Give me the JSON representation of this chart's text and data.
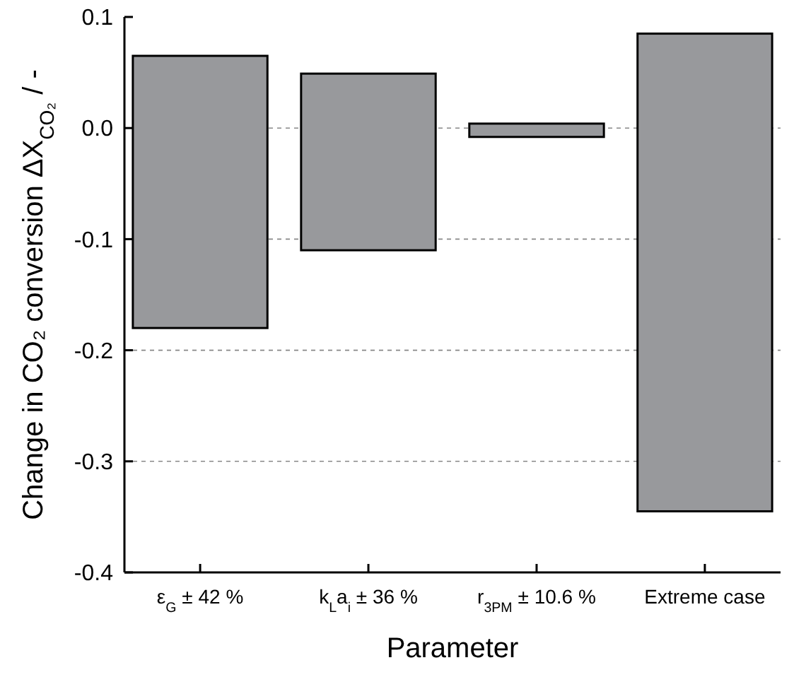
{
  "chart_data": {
    "type": "bar",
    "xlabel": "Parameter",
    "ylabel": "Change in CO₂ conversion ΔX$_{CO₂}$ / -",
    "categories": [
      "ε$_{G}$ ± 42 %",
      "k$_{L}$a$_{i}$ ± 36 %",
      "r$_{3PM}$ ± 10.6 %",
      "Extreme case"
    ],
    "base": [
      -0.18,
      -0.11,
      -0.008,
      -0.345
    ],
    "values": [
      0.245,
      0.159,
      0.012,
      0.43
    ],
    "color": "#98999c",
    "ylim": [
      -0.4,
      0.1
    ],
    "yticks": [
      {
        "value": -0.4,
        "label": "-0.4"
      },
      {
        "value": -0.3,
        "label": "-0.3"
      },
      {
        "value": -0.2,
        "label": "-0.2"
      },
      {
        "value": -0.1,
        "label": "-0.1"
      },
      {
        "value": 0,
        "label": "0.0"
      },
      {
        "value": 0.1,
        "label": "0.1"
      }
    ],
    "grid": "y"
  }
}
